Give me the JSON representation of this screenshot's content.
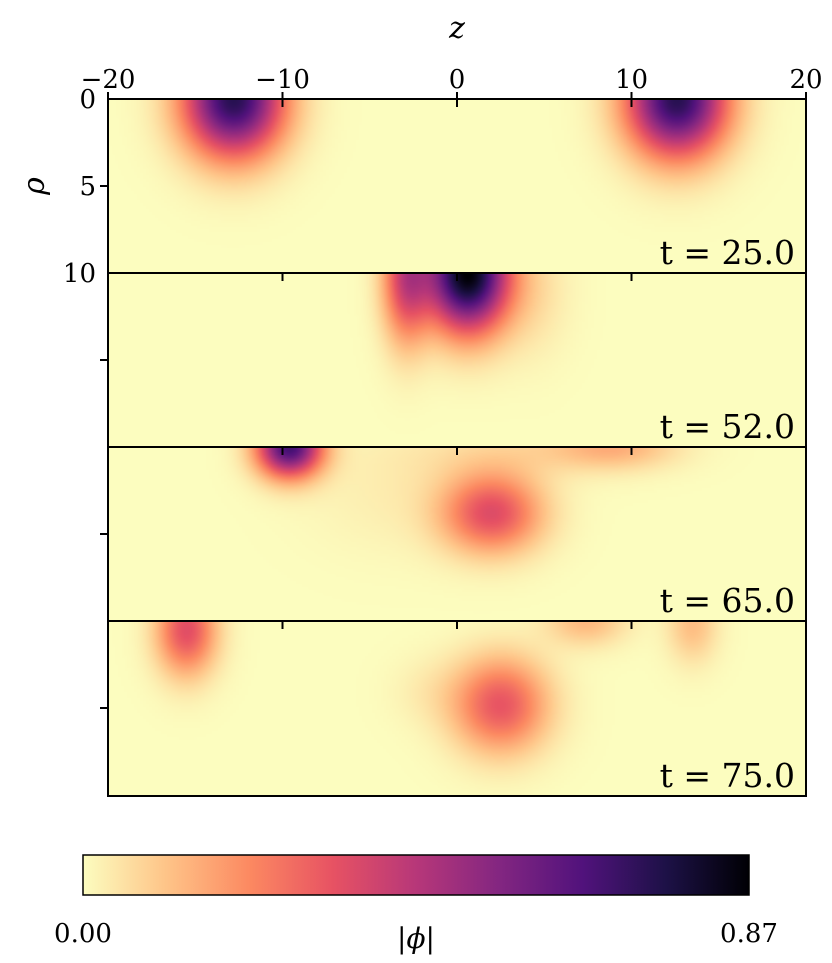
{
  "chart_data": {
    "type": "heatmap",
    "title": "",
    "xlabel": "z",
    "ylabel": "ρ",
    "xlim": [
      -20,
      20
    ],
    "ylim": [
      0,
      10
    ],
    "xticks": [
      {
        "value": -20,
        "label": "−20"
      },
      {
        "value": -10,
        "label": "−10"
      },
      {
        "value": 0,
        "label": "0"
      },
      {
        "value": 10,
        "label": "10"
      },
      {
        "value": 20,
        "label": "20"
      }
    ],
    "yticks": [
      {
        "value": 0,
        "label": "0"
      },
      {
        "value": 5,
        "label": "5"
      },
      {
        "value": 10,
        "label": "10"
      }
    ],
    "colormap": "magma_r",
    "colorbar": {
      "label": "|ϕ|",
      "min": 0.0,
      "max": 0.87,
      "min_label": "0.00",
      "max_label": "0.87",
      "colors": [
        "#fcfdbf",
        "#fec488",
        "#fc8961",
        "#e75263",
        "#b73779",
        "#832681",
        "#51127c",
        "#1d1147",
        "#000004"
      ]
    },
    "panels": [
      {
        "time_label": "t = 25.0",
        "blobs": [
          {
            "z": -12.8,
            "rho": 0.0,
            "amp": 0.74,
            "sz": 2.0,
            "srho": 2.3
          },
          {
            "z": 12.6,
            "rho": 0.0,
            "amp": 0.74,
            "sz": 2.0,
            "srho": 2.3
          }
        ]
      },
      {
        "time_label": "t = 52.0",
        "blobs": [
          {
            "z": 0.6,
            "rho": 0.0,
            "amp": 0.87,
            "sz": 1.6,
            "srho": 2.3
          },
          {
            "z": -2.9,
            "rho": 0.2,
            "amp": 0.38,
            "sz": 0.95,
            "srho": 2.6
          },
          {
            "z": 4.2,
            "rho": 1.0,
            "amp": 0.06,
            "sz": 1.5,
            "srho": 2.5
          }
        ]
      },
      {
        "time_label": "t = 65.0",
        "blobs": [
          {
            "z": -9.6,
            "rho": 0.0,
            "amp": 0.68,
            "sz": 1.3,
            "srho": 1.2
          },
          {
            "z": 2.0,
            "rho": 3.8,
            "amp": 0.34,
            "sz": 2.0,
            "srho": 1.6
          },
          {
            "z": 9.0,
            "rho": 0.0,
            "amp": 0.14,
            "sz": 2.5,
            "srho": 0.9
          },
          {
            "z": 3.0,
            "rho": 0.3,
            "amp": 0.05,
            "sz": 4.0,
            "srho": 1.2
          },
          {
            "z": -3.5,
            "rho": 2.5,
            "amp": 0.03,
            "sz": 3.5,
            "srho": 2.5
          }
        ]
      },
      {
        "time_label": "t = 75.0",
        "blobs": [
          {
            "z": -15.5,
            "rho": 0.5,
            "amp": 0.34,
            "sz": 1.2,
            "srho": 1.8
          },
          {
            "z": 2.5,
            "rho": 4.8,
            "amp": 0.32,
            "sz": 1.9,
            "srho": 1.9
          },
          {
            "z": 7.4,
            "rho": 0.0,
            "amp": 0.13,
            "sz": 1.6,
            "srho": 1.0
          },
          {
            "z": 13.5,
            "rho": 0.2,
            "amp": 0.12,
            "sz": 1.0,
            "srho": 1.5
          },
          {
            "z": -1.5,
            "rho": 4.0,
            "amp": 0.03,
            "sz": 1.6,
            "srho": 1.4
          }
        ]
      }
    ]
  }
}
